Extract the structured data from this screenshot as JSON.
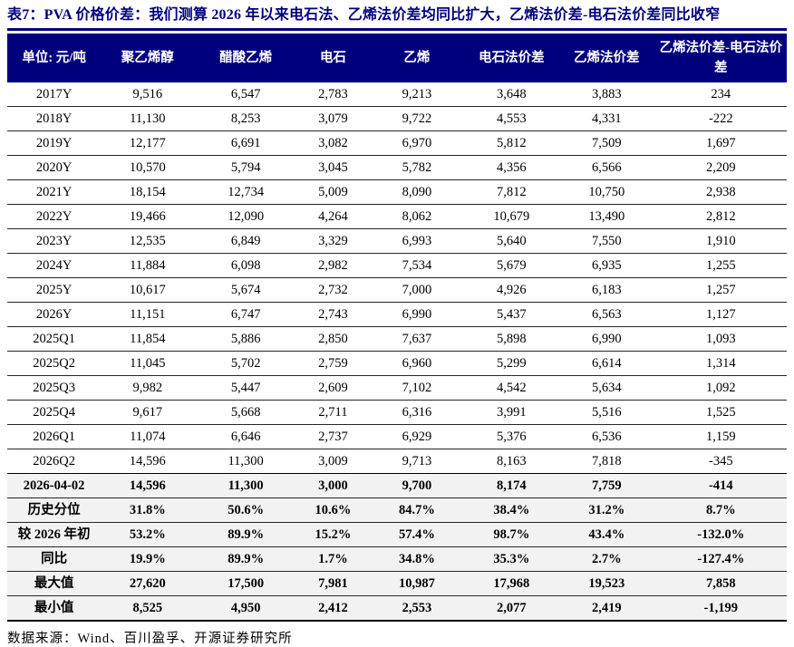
{
  "title": "表7：PVA 价格价差：我们测算 2026 年以来电石法、乙烯法价差均同比扩大，乙烯法价差-电石法价差同比收窄",
  "footer": "数据来源：Wind、百川盈孚、开源证券研究所",
  "colors": {
    "navy": "#00007D",
    "header_text": "#FFFFFF",
    "shaded_row_bg": "#F2F2F2",
    "body_text": "#000000"
  },
  "table": {
    "headers": [
      "单位: 元/吨",
      "聚乙烯醇",
      "醋酸乙烯",
      "电石",
      "乙烯",
      "电石法价差",
      "乙烯法价差",
      "乙烯法价差-电石法价差"
    ],
    "rows": [
      {
        "label": "2017Y",
        "values": [
          "9,516",
          "6,547",
          "2,783",
          "9,213",
          "3,648",
          "3,883",
          "234"
        ],
        "bold": false
      },
      {
        "label": "2018Y",
        "values": [
          "11,130",
          "8,253",
          "3,079",
          "9,722",
          "4,553",
          "4,331",
          "-222"
        ],
        "bold": false
      },
      {
        "label": "2019Y",
        "values": [
          "12,177",
          "6,691",
          "3,082",
          "6,970",
          "5,812",
          "7,509",
          "1,697"
        ],
        "bold": false
      },
      {
        "label": "2020Y",
        "values": [
          "10,570",
          "5,794",
          "3,045",
          "5,782",
          "4,356",
          "6,566",
          "2,209"
        ],
        "bold": false
      },
      {
        "label": "2021Y",
        "values": [
          "18,154",
          "12,734",
          "5,009",
          "8,090",
          "7,812",
          "10,750",
          "2,938"
        ],
        "bold": false
      },
      {
        "label": "2022Y",
        "values": [
          "19,466",
          "12,090",
          "4,264",
          "8,062",
          "10,679",
          "13,490",
          "2,812"
        ],
        "bold": false
      },
      {
        "label": "2023Y",
        "values": [
          "12,535",
          "6,849",
          "3,329",
          "6,993",
          "5,640",
          "7,550",
          "1,910"
        ],
        "bold": false
      },
      {
        "label": "2024Y",
        "values": [
          "11,884",
          "6,098",
          "2,982",
          "7,534",
          "5,679",
          "6,935",
          "1,255"
        ],
        "bold": false
      },
      {
        "label": "2025Y",
        "values": [
          "10,617",
          "5,674",
          "2,732",
          "7,000",
          "4,926",
          "6,183",
          "1,257"
        ],
        "bold": false
      },
      {
        "label": "2026Y",
        "values": [
          "11,151",
          "6,747",
          "2,743",
          "6,990",
          "5,437",
          "6,563",
          "1,127"
        ],
        "bold": false
      },
      {
        "label": "2025Q1",
        "values": [
          "11,854",
          "5,886",
          "2,850",
          "7,637",
          "5,898",
          "6,990",
          "1,093"
        ],
        "bold": false
      },
      {
        "label": "2025Q2",
        "values": [
          "11,045",
          "5,702",
          "2,759",
          "6,960",
          "5,299",
          "6,614",
          "1,314"
        ],
        "bold": false
      },
      {
        "label": "2025Q3",
        "values": [
          "9,982",
          "5,447",
          "2,609",
          "7,102",
          "4,542",
          "5,634",
          "1,092"
        ],
        "bold": false
      },
      {
        "label": "2025Q4",
        "values": [
          "9,617",
          "5,668",
          "2,711",
          "6,316",
          "3,991",
          "5,516",
          "1,525"
        ],
        "bold": false
      },
      {
        "label": "2026Q1",
        "values": [
          "11,074",
          "6,646",
          "2,737",
          "6,929",
          "5,376",
          "6,536",
          "1,159"
        ],
        "bold": false
      },
      {
        "label": "2026Q2",
        "values": [
          "14,596",
          "11,300",
          "3,009",
          "9,713",
          "8,163",
          "7,818",
          "-345"
        ],
        "bold": false
      },
      {
        "label": "2026-04-02",
        "values": [
          "14,596",
          "11,300",
          "3,000",
          "9,700",
          "8,174",
          "7,759",
          "-414"
        ],
        "bold": true
      },
      {
        "label": "历史分位",
        "values": [
          "31.8%",
          "50.6%",
          "10.6%",
          "84.7%",
          "38.4%",
          "31.2%",
          "8.7%"
        ],
        "bold": true
      },
      {
        "label": "较 2026 年初",
        "values": [
          "53.2%",
          "89.9%",
          "15.2%",
          "57.4%",
          "98.7%",
          "43.4%",
          "-132.0%"
        ],
        "bold": true
      },
      {
        "label": "同比",
        "values": [
          "19.9%",
          "89.9%",
          "1.7%",
          "34.8%",
          "35.3%",
          "2.7%",
          "-127.4%"
        ],
        "bold": true
      },
      {
        "label": "最大值",
        "values": [
          "27,620",
          "17,500",
          "7,981",
          "10,987",
          "17,968",
          "19,523",
          "7,858"
        ],
        "bold": true
      },
      {
        "label": "最小值",
        "values": [
          "8,525",
          "4,950",
          "2,412",
          "2,553",
          "2,077",
          "2,419",
          "-1,199"
        ],
        "bold": true
      }
    ]
  }
}
